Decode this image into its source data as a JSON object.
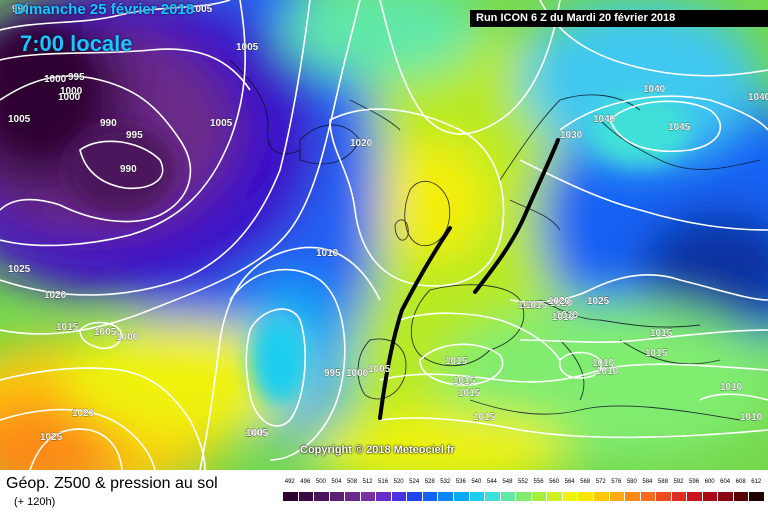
{
  "header": {
    "date": "Dimanche 25 février 2018",
    "time": "7:00 locale",
    "run": "Run ICON 6 Z du Mardi 20 février 2018"
  },
  "copyright": "Copyright © 2018 Meteociel.fr",
  "footer": {
    "title": "Géop. Z500 & pression au sol",
    "subtitle": "(+ 120h)"
  },
  "scale": {
    "labels": [
      "492",
      "496",
      "500",
      "504",
      "508",
      "512",
      "516",
      "520",
      "524",
      "528",
      "532",
      "536",
      "540",
      "544",
      "548",
      "552",
      "556",
      "560",
      "564",
      "568",
      "572",
      "576",
      "580",
      "584",
      "588",
      "592",
      "596",
      "600",
      "604",
      "608",
      "612"
    ],
    "colors": [
      "#2d0030",
      "#3c0a46",
      "#4b145c",
      "#5a1e72",
      "#6a2a8a",
      "#7a30a0",
      "#6a2cc8",
      "#4a32e0",
      "#2244ee",
      "#1462f4",
      "#0a86f6",
      "#08aaf4",
      "#1ccdf0",
      "#40e0d8",
      "#60e8a8",
      "#80ec70",
      "#a8ee40",
      "#cff024",
      "#eff20c",
      "#f9e40a",
      "#fcc80e",
      "#fdaa14",
      "#fd8a18",
      "#f86a1c",
      "#ee4c20",
      "#de2c24",
      "#c8141e",
      "#a80a16",
      "#880810",
      "#5a040a",
      "#200000"
    ]
  },
  "pressure_labels": [
    "990",
    "1000",
    "995",
    "1000",
    "1005",
    "990",
    "1005",
    "1000",
    "1005",
    "995",
    "990",
    "1005",
    "1020",
    "1025",
    "1020",
    "1015",
    "1005",
    "1000",
    "1010",
    "995",
    "1000",
    "1005",
    "1005",
    "1020",
    "1025",
    "1015",
    "1020",
    "1025",
    "1015",
    "1010",
    "1015",
    "1015",
    "1015",
    "1015",
    "1010",
    "1010",
    "1015",
    "1010",
    "1010",
    "1015",
    "1030",
    "1040",
    "1040",
    "1040",
    "1045",
    "1020",
    "1010",
    "1005"
  ],
  "legend_colors": {
    "front": "#000000"
  }
}
